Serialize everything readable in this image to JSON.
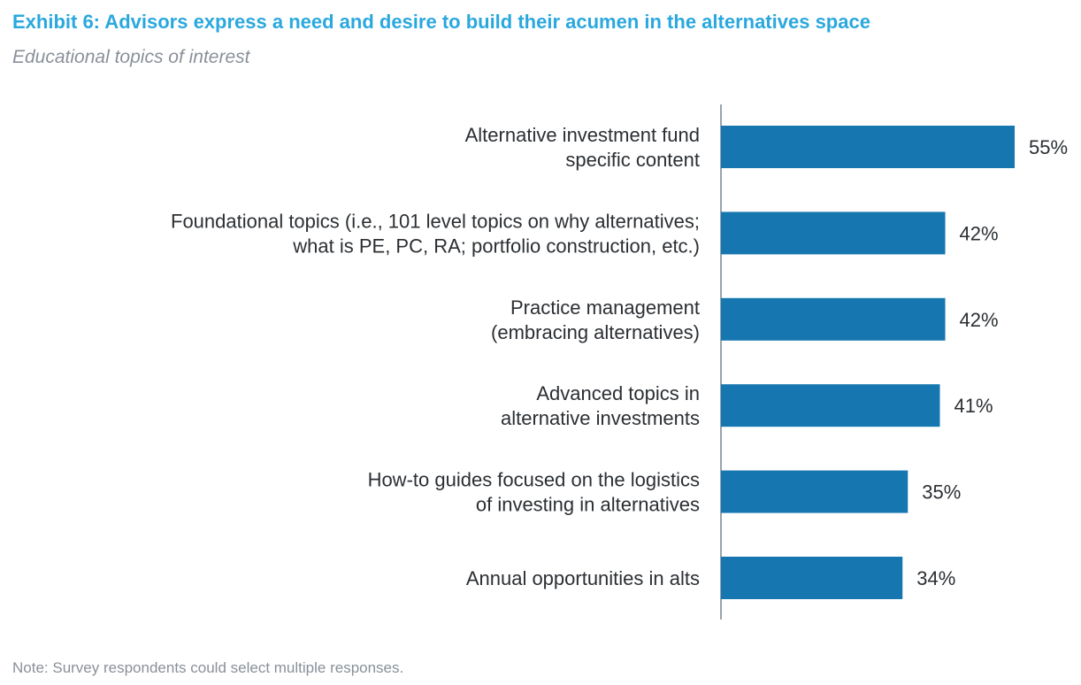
{
  "header": {
    "title": "Exhibit 6: Advisors express a need and desire to build their acumen in the alternatives space",
    "subtitle": "Educational topics of interest"
  },
  "footer": {
    "note": "Note: Survey respondents could select multiple responses."
  },
  "colors": {
    "title": "#2aa8de",
    "bar": "#1677b0",
    "axis": "#9aa3ad",
    "label_text": "#2b2f33",
    "muted_text": "#8a9099"
  },
  "chart_data": {
    "type": "bar",
    "orientation": "horizontal",
    "title": "Exhibit 6: Advisors express a need and desire to build their acumen in the alternatives space",
    "subtitle": "Educational topics of interest",
    "xlabel": "",
    "ylabel": "",
    "xlim": [
      0,
      55
    ],
    "grid": false,
    "legend": "none",
    "categories": [
      [
        "Alternative investment fund",
        "specific content"
      ],
      [
        "Foundational topics (i.e., 101 level topics on why alternatives;",
        "what is PE, PC, RA; portfolio construction, etc.)"
      ],
      [
        "Practice management",
        "(embracing alternatives)"
      ],
      [
        "Advanced topics in",
        "alternative investments"
      ],
      [
        "How-to guides focused on the logistics",
        "of investing in alternatives"
      ],
      [
        "Annual opportunities in alts"
      ]
    ],
    "values": [
      55,
      42,
      42,
      41,
      35,
      34
    ],
    "data_labels": [
      "55%",
      "42%",
      "42%",
      "41%",
      "35%",
      "34%"
    ]
  }
}
